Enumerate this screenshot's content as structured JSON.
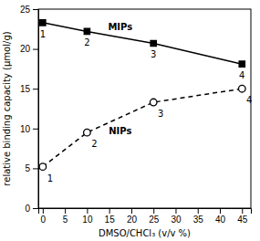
{
  "chart_data": {
    "type": "line",
    "xlabel": "DMSO/CHCl₃ (v/v %)",
    "ylabel": "relative binding capacity (μmol/g)",
    "xlim": [
      -1,
      47
    ],
    "ylim": [
      0,
      25
    ],
    "xticks": [
      0,
      5,
      10,
      15,
      20,
      25,
      30,
      35,
      40,
      45
    ],
    "yticks": [
      0,
      5,
      10,
      15,
      20,
      25
    ],
    "grid": false,
    "series": [
      {
        "name": "MIPs",
        "color": "#000000",
        "marker": "square",
        "line_style": "solid",
        "x": [
          0,
          10,
          25,
          45
        ],
        "values": [
          23.3,
          22.2,
          20.7,
          18.1
        ],
        "point_labels": [
          "1",
          "2",
          "3",
          "4"
        ]
      },
      {
        "name": "NIPs",
        "color": "#000000",
        "marker": "circle-open",
        "line_style": "dashed",
        "x": [
          0,
          10,
          25,
          45
        ],
        "values": [
          5.2,
          9.5,
          13.3,
          15.0
        ],
        "point_labels": [
          "1",
          "2",
          "3",
          "4"
        ]
      }
    ]
  }
}
